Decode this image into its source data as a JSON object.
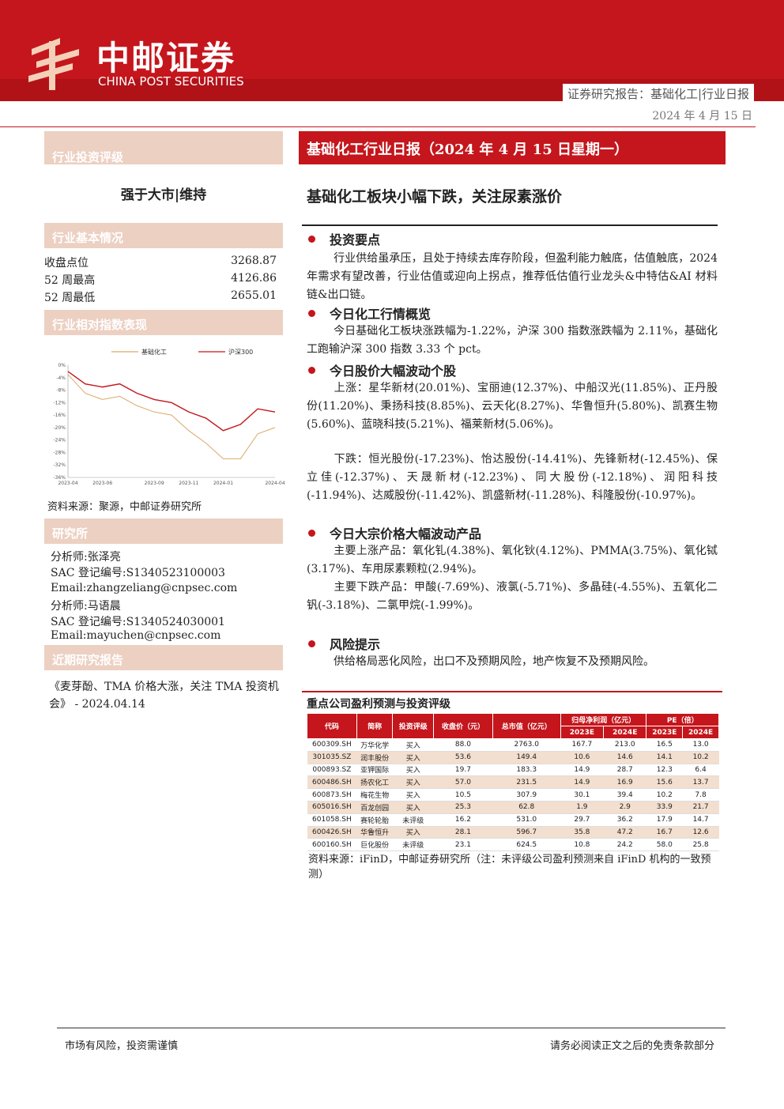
{
  "header": {
    "brand_cn": "中邮证券",
    "brand_en": "CHINA POST SECURITIES",
    "report_type": "证券研究报告：基础化工|行业日报",
    "date": "2024 年 4 月 15 日",
    "colors": {
      "brand_red": "#c4161c",
      "sidebar_tan": "#ecd0c2"
    }
  },
  "sidebar": {
    "rating_title": "行业投资评级",
    "rating": "强于大市|维持",
    "basic_title": "行业基本情况",
    "basic": [
      {
        "k": "收盘点位",
        "v": "3268.87"
      },
      {
        "k": "52 周最高",
        "v": "4126.86"
      },
      {
        "k": "52 周最低",
        "v": "2655.01"
      }
    ],
    "perf_title": "行业相对指数表现",
    "perf_source": "资料来源：聚源，中邮证券研究所",
    "research_title": "研究所",
    "analysts": [
      "分析师:张泽亮",
      "SAC 登记编号:S1340523100003",
      "Email:zhangzeliang@cnpsec.com",
      "分析师:马语晨",
      "SAC 登记编号:S1340524030001",
      "Email:mayuchen@cnpsec.com"
    ],
    "recent_title": "近期研究报告",
    "recent": "《麦芽酚、TMA 价格大涨，关注 TMA 投资机会》 - 2024.04.14"
  },
  "chart_data": {
    "type": "line",
    "x": [
      "2023-04",
      "2023-05",
      "2023-06",
      "2023-07",
      "2023-08",
      "2023-09",
      "2023-10",
      "2023-11",
      "2023-12",
      "2024-01",
      "2024-02",
      "2024-03",
      "2024-04"
    ],
    "x_ticks": [
      "2023-04",
      "2023-06",
      "2023-09",
      "2023-11",
      "2024-01",
      "2024-04"
    ],
    "y_ticks": [
      "-4%",
      "-8%",
      "-12%",
      "-16%",
      "-20%",
      "-24%",
      "-28%",
      "-32%",
      "-36%"
    ],
    "yaxis_top_tick": "0%",
    "ylim": [
      -36,
      0
    ],
    "series": [
      {
        "name": "基础化工",
        "color": "#d9a96a",
        "values": [
          -3,
          -9,
          -11,
          -10,
          -13,
          -15,
          -16,
          -21,
          -25,
          -30,
          -30,
          -22,
          -20
        ]
      },
      {
        "name": "沪深300",
        "color": "#c4161c",
        "values": [
          -2,
          -6,
          -7,
          -6,
          -9,
          -11,
          -12,
          -15,
          -17,
          -21,
          -19,
          -14,
          -15
        ]
      }
    ],
    "legend": "top"
  },
  "main": {
    "title": "基础化工行业日报（2024 年 4 月 15 日星期一）",
    "headline": "基础化工板块小幅下跌，关注尿素涨价",
    "s1_title": "投资要点",
    "s1": "行业供给虽承压，且处于持续去库存阶段，但盈利能力触底，估值触底，2024 年需求有望改善，行业估值或迎向上拐点，推荐低估值行业龙头&中特估&AI 材料链&出口链。",
    "s2_title": "今日化工行情概览",
    "s2": "今日基础化工板块涨跌幅为-1.22%，沪深 300 指数涨跌幅为 2.11%，基础化工跑输沪深 300 指数 3.33 个 pct。",
    "s3_title": "今日股价大幅波动个股",
    "s3_up": "上涨：星华新材(20.01%)、宝丽迪(12.37%)、中船汉光(11.85%)、正丹股份(11.20%)、秉扬科技(8.85%)、云天化(8.27%)、华鲁恒升(5.80%)、凯赛生物(5.60%)、蓝晓科技(5.21%)、福莱新材(5.06%)。",
    "s3_down": "下跌：恒光股份(-17.23%)、怡达股份(-14.41%)、先锋新材(-12.45%)、保立佳(-12.37%)、天晟新材(-12.23%)、同大股份(-12.18%)、润阳科技(-11.94%)、达威股份(-11.42%)、凯盛新材(-11.28%)、科隆股份(-10.97%)。",
    "s4_title": "今日大宗价格大幅波动产品",
    "s4_up": "主要上涨产品：氧化钆(4.38%)、氧化钬(4.12%)、PMMA(3.75%)、氧化铽(3.17%)、车用尿素颗粒(2.94%)。",
    "s4_down": "主要下跌产品：甲酸(-7.69%)、液氯(-5.71%)、多晶硅(-4.55%)、五氧化二钒(-3.18%)、二氯甲烷(-1.99%)。",
    "s5_title": "风险提示",
    "s5": "供给格局恶化风险，出口不及预期风险，地产恢复不及预期风险。"
  },
  "table": {
    "title": "重点公司盈利预测与投资评级",
    "h": {
      "code": "代码",
      "name": "简称",
      "rating": "投资评级",
      "close": "收盘价（元）",
      "mcap": "总市值（亿元）",
      "np": "归母净利润（亿元）",
      "pe": "PE（倍）",
      "y1": "2023E",
      "y2": "2024E"
    },
    "rows": [
      [
        "600309.SH",
        "万华化学",
        "买入",
        "88.0",
        "2763.0",
        "167.7",
        "213.0",
        "16.5",
        "13.0"
      ],
      [
        "301035.SZ",
        "润丰股份",
        "买入",
        "53.6",
        "149.4",
        "10.6",
        "14.6",
        "14.1",
        "10.2"
      ],
      [
        "000893.SZ",
        "亚钾国际",
        "买入",
        "19.7",
        "183.3",
        "14.9",
        "28.7",
        "12.3",
        "6.4"
      ],
      [
        "600486.SH",
        "扬农化工",
        "买入",
        "57.0",
        "231.5",
        "14.9",
        "16.9",
        "15.6",
        "13.7"
      ],
      [
        "600873.SH",
        "梅花生物",
        "买入",
        "10.5",
        "307.9",
        "30.1",
        "39.4",
        "10.2",
        "7.8"
      ],
      [
        "605016.SH",
        "百龙创园",
        "买入",
        "25.3",
        "62.8",
        "1.9",
        "2.9",
        "33.9",
        "21.7"
      ],
      [
        "601058.SH",
        "赛轮轮胎",
        "未评级",
        "16.2",
        "531.0",
        "29.7",
        "36.2",
        "17.9",
        "14.7"
      ],
      [
        "600426.SH",
        "华鲁恒升",
        "买入",
        "28.1",
        "596.7",
        "35.8",
        "47.2",
        "16.7",
        "12.6"
      ],
      [
        "600160.SH",
        "巨化股份",
        "未评级",
        "23.1",
        "624.5",
        "10.8",
        "24.2",
        "58.0",
        "25.8"
      ]
    ],
    "source": "资料来源：iFinD，中邮证券研究所（注：未评级公司盈利预测来自 iFinD 机构的一致预测）"
  },
  "footer": {
    "left": "市场有风险，投资需谨慎",
    "right": "请务必阅读正文之后的免责条款部分"
  }
}
